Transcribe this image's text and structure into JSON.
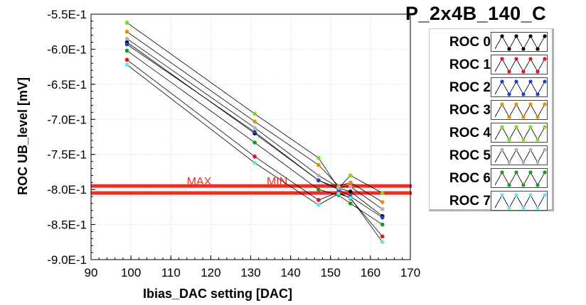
{
  "title": "P_2x4B_140_C",
  "chart_data": {
    "type": "scatter",
    "xlabel": "Ibias_DAC setting [DAC]",
    "ylabel": "ROC UB_level [mV]",
    "xlim": [
      90,
      170
    ],
    "ylim": [
      -0.9,
      -0.55
    ],
    "xticks": [
      {
        "v": 90,
        "label": "90"
      },
      {
        "v": 100,
        "label": "100"
      },
      {
        "v": 110,
        "label": "110"
      },
      {
        "v": 120,
        "label": "120"
      },
      {
        "v": 130,
        "label": "130"
      },
      {
        "v": 140,
        "label": "140"
      },
      {
        "v": 150,
        "label": "150"
      },
      {
        "v": 160,
        "label": "160"
      },
      {
        "v": 170,
        "label": "170"
      }
    ],
    "yticks": [
      {
        "v": -0.55,
        "label": "-5.5E-1"
      },
      {
        "v": -0.6,
        "label": "-6.0E-1"
      },
      {
        "v": -0.65,
        "label": "-6.5E-1"
      },
      {
        "v": -0.7,
        "label": "-7.0E-1"
      },
      {
        "v": -0.75,
        "label": "-7.5E-1"
      },
      {
        "v": -0.8,
        "label": "-8.0E-1"
      },
      {
        "v": -0.85,
        "label": "-8.5E-1"
      },
      {
        "v": -0.9,
        "label": "-9.0E-1"
      }
    ],
    "grid": true,
    "legend_position": "right",
    "thresholds": [
      {
        "label": "MAX",
        "y": -0.795,
        "color": "#e6322a",
        "label_x": 114
      },
      {
        "label": "MIN",
        "y": -0.805,
        "color": "#e6322a",
        "label_x": 134
      }
    ],
    "series": [
      {
        "name": "ROC 0",
        "color": "#000000",
        "points": [
          {
            "x": 99,
            "y": -0.59
          },
          {
            "x": 131,
            "y": -0.72
          },
          {
            "x": 147,
            "y": -0.787
          },
          {
            "x": 152,
            "y": -0.798
          },
          {
            "x": 155,
            "y": -0.803
          },
          {
            "x": 163,
            "y": -0.838
          }
        ]
      },
      {
        "name": "ROC 1",
        "color": "#e8101a",
        "points": [
          {
            "x": 99,
            "y": -0.615
          },
          {
            "x": 131,
            "y": -0.753
          },
          {
            "x": 147,
            "y": -0.815
          },
          {
            "x": 152,
            "y": -0.804
          },
          {
            "x": 155,
            "y": -0.813
          },
          {
            "x": 163,
            "y": -0.867
          }
        ]
      },
      {
        "name": "ROC 2",
        "color": "#1e3fd0",
        "points": [
          {
            "x": 99,
            "y": -0.593
          },
          {
            "x": 131,
            "y": -0.718
          },
          {
            "x": 147,
            "y": -0.787
          },
          {
            "x": 152,
            "y": -0.8
          },
          {
            "x": 155,
            "y": -0.81
          },
          {
            "x": 163,
            "y": -0.84
          }
        ]
      },
      {
        "name": "ROC 3",
        "color": "#f08c00",
        "points": [
          {
            "x": 99,
            "y": -0.575
          },
          {
            "x": 131,
            "y": -0.703
          },
          {
            "x": 147,
            "y": -0.765
          },
          {
            "x": 152,
            "y": -0.795
          },
          {
            "x": 155,
            "y": -0.79
          },
          {
            "x": 163,
            "y": -0.818
          }
        ]
      },
      {
        "name": "ROC 4",
        "color": "#7bdc1e",
        "points": [
          {
            "x": 99,
            "y": -0.562
          },
          {
            "x": 131,
            "y": -0.692
          },
          {
            "x": 147,
            "y": -0.755
          },
          {
            "x": 152,
            "y": -0.798
          },
          {
            "x": 155,
            "y": -0.78
          },
          {
            "x": 163,
            "y": -0.805
          }
        ]
      },
      {
        "name": "ROC 5",
        "color": "#b4b4b4",
        "points": [
          {
            "x": 99,
            "y": -0.585
          },
          {
            "x": 131,
            "y": -0.712
          },
          {
            "x": 147,
            "y": -0.78
          },
          {
            "x": 152,
            "y": -0.797
          },
          {
            "x": 155,
            "y": -0.796
          },
          {
            "x": 163,
            "y": -0.828
          }
        ]
      },
      {
        "name": "ROC 6",
        "color": "#1a9a1a",
        "points": [
          {
            "x": 99,
            "y": -0.602
          },
          {
            "x": 131,
            "y": -0.733
          },
          {
            "x": 147,
            "y": -0.8
          },
          {
            "x": 152,
            "y": -0.808
          },
          {
            "x": 155,
            "y": -0.82
          },
          {
            "x": 163,
            "y": -0.85
          }
        ]
      },
      {
        "name": "ROC 7",
        "color": "#5ae8f0",
        "points": [
          {
            "x": 99,
            "y": -0.622
          },
          {
            "x": 131,
            "y": -0.762
          },
          {
            "x": 147,
            "y": -0.822
          },
          {
            "x": 152,
            "y": -0.806
          },
          {
            "x": 155,
            "y": -0.812
          },
          {
            "x": 163,
            "y": -0.875
          }
        ]
      }
    ]
  }
}
